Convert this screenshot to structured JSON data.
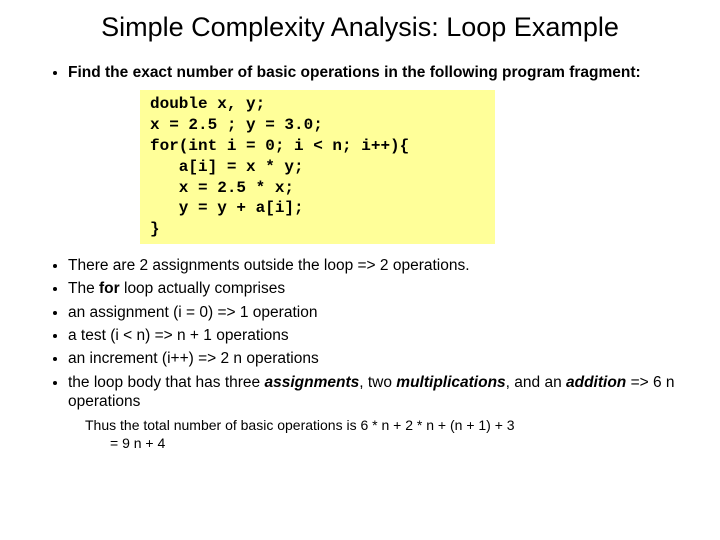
{
  "title": "Simple Complexity Analysis: Loop Example",
  "intro_bullet": "Find the exact number of basic operations in the following program fragment:",
  "code": "double x, y;\nx = 2.5 ; y = 3.0;\nfor(int i = 0; i < n; i++){\n   a[i] = x * y;\n   x = 2.5 * x;\n   y = y + a[i];\n}",
  "bullets": {
    "b1": "There are 2 assignments outside the loop => 2 operations.",
    "b2_pre": "The ",
    "b2_bold": "for",
    "b2_post": " loop actually comprises",
    "b3": "an assignment (i = 0) => 1 operation",
    "b4": "a test (i < n) => n + 1 operations",
    "b5": "an increment (i++) => 2 n operations",
    "b6_pre": "the loop body that has three ",
    "b6_bold1": "assignments",
    "b6_mid1": ", two ",
    "b6_bold2": "multiplications",
    "b6_mid2": ", and an ",
    "b6_bold3": "addition",
    "b6_post": " => 6 n operations"
  },
  "conclusion_line1": "Thus the total number of basic operations is 6 * n + 2 * n + (n + 1) + 3",
  "conclusion_line2": "= 9 n + 4",
  "styling": {
    "background_color": "#ffffff",
    "text_color": "#000000",
    "title_fontsize": 27,
    "body_fontsize": 15.5,
    "code_bg": "#ffff99",
    "code_font": "Courier New",
    "code_fontsize": 16,
    "body_font": "Arial"
  }
}
